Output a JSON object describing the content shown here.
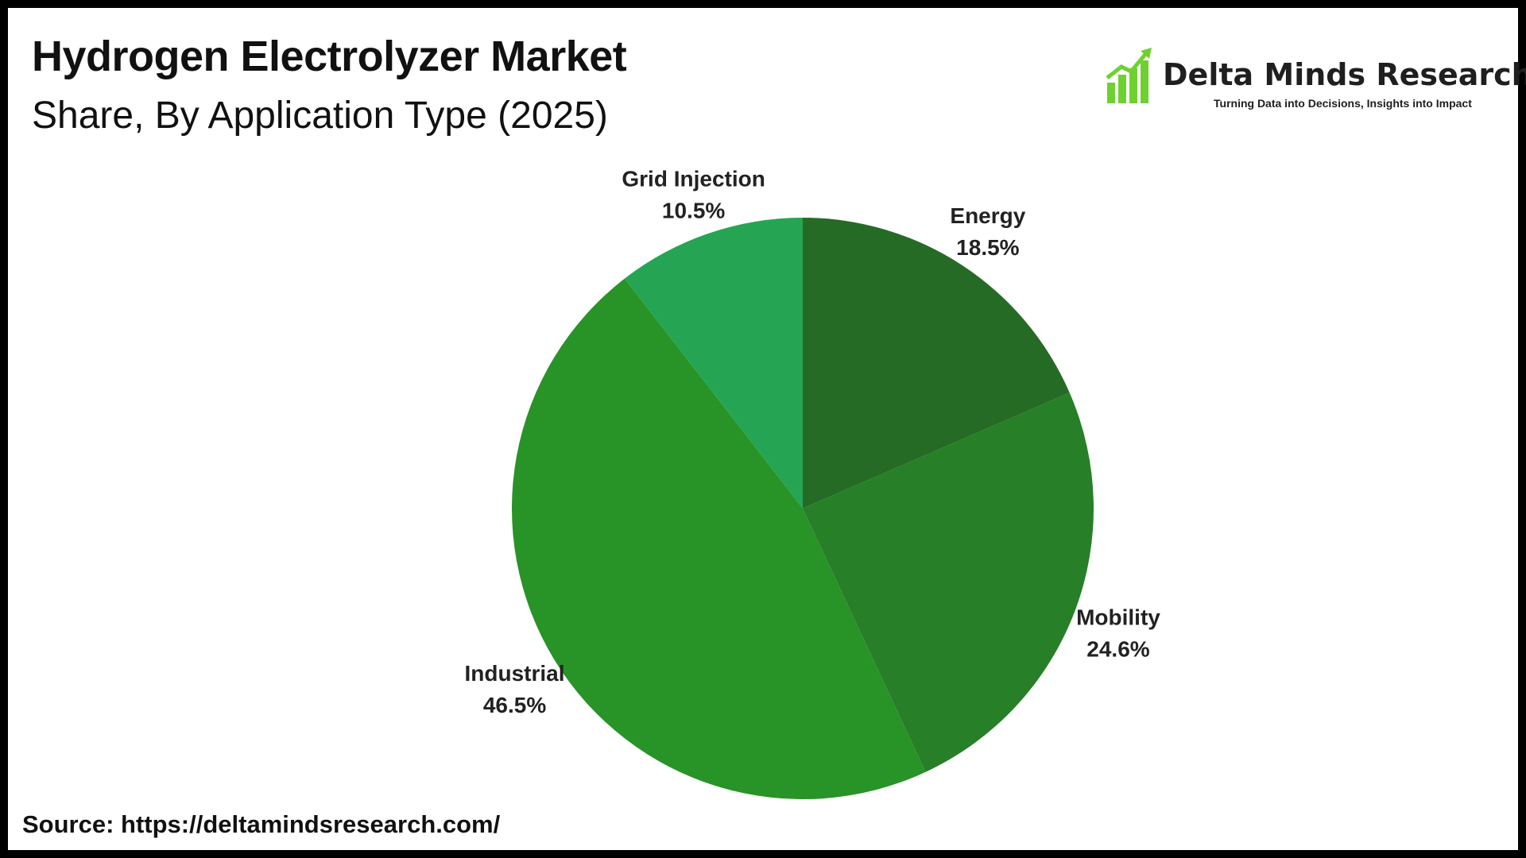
{
  "title": "Hydrogen Electrolyzer Market",
  "subtitle": "Share, By Application Type (2025)",
  "logo": {
    "brand": "Delta Minds Research",
    "tagline": "Turning Data into Decisions, Insights into Impact",
    "icon": "bar-chart-growth-icon",
    "color": "#6ed12f"
  },
  "source": "Source: https://deltamindsresearch.com/",
  "chart_data": {
    "type": "pie",
    "title": "Hydrogen Electrolyzer Market",
    "subtitle": "Share, By Application Type (2025)",
    "start_angle_deg": 0,
    "direction": "clockwise",
    "slices": [
      {
        "label": "Energy",
        "value": 18.5,
        "display": "18.5%",
        "color": "#266b25"
      },
      {
        "label": "Mobility",
        "value": 24.6,
        "display": "24.6%",
        "color": "#277f27"
      },
      {
        "label": "Industrial",
        "value": 46.5,
        "display": "46.5%",
        "color": "#289326"
      },
      {
        "label": "Grid Injection",
        "value": 10.5,
        "display": "10.5%",
        "color": "#25a554"
      }
    ]
  }
}
